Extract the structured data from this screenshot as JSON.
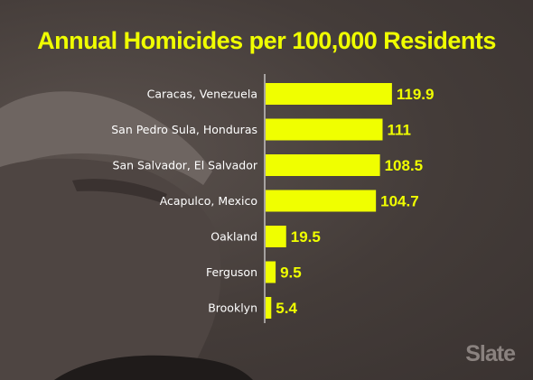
{
  "title": "Annual Homicides per 100,000 Residents",
  "brand": "Slate",
  "colors": {
    "bar": "#f0ff00",
    "background": "#3e3836",
    "axis": "#ffffff"
  },
  "chart_data": {
    "type": "bar",
    "orientation": "horizontal",
    "title": "Annual Homicides per 100,000 Residents",
    "xlabel": "",
    "ylabel": "",
    "xlim": [
      0,
      120
    ],
    "grid": false,
    "categories": [
      "Caracas, Venezuela",
      "San Pedro Sula, Honduras",
      "San Salvador, El Salvador",
      "Acapulco, Mexico",
      "Oakland",
      "Ferguson",
      "Brooklyn"
    ],
    "values": [
      119.9,
      111,
      108.5,
      104.7,
      19.5,
      9.5,
      5.4
    ],
    "value_labels": [
      "119.9",
      "111",
      "108.5",
      "104.7",
      "19.5",
      "9.5",
      "5.4"
    ]
  }
}
